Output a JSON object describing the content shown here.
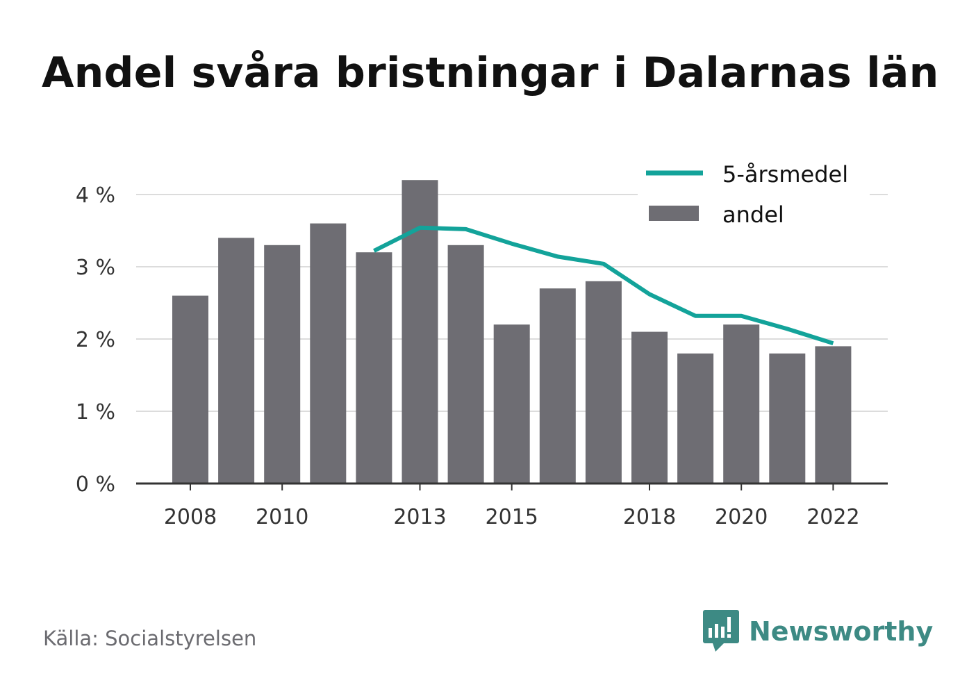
{
  "title": "Andel svåra bristningar i Dalarnas län",
  "source": "Källa: Socialstyrelsen",
  "logo_text": "Newsworthy",
  "colors": {
    "bar": "#6e6d73",
    "line": "#13a39a",
    "grid": "#dcdcdc",
    "axis": "#333333",
    "logo": "#3d8a84"
  },
  "chart_data": {
    "type": "bar",
    "categories": [
      "2008",
      "2009",
      "2010",
      "2011",
      "2012",
      "2013",
      "2014",
      "2015",
      "2016",
      "2017",
      "2018",
      "2019",
      "2020",
      "2021",
      "2022"
    ],
    "x_tick_labels": [
      "2008",
      "",
      "2010",
      "",
      "",
      "2013",
      "",
      "2015",
      "",
      "",
      "2018",
      "",
      "2020",
      "",
      "2022"
    ],
    "series": [
      {
        "name": "andel",
        "type": "bar",
        "values": [
          2.6,
          3.4,
          3.3,
          3.6,
          3.2,
          4.2,
          3.3,
          2.2,
          2.7,
          2.8,
          2.1,
          1.8,
          2.2,
          1.8,
          1.9
        ]
      },
      {
        "name": "5-årsmedel",
        "type": "line",
        "values": [
          null,
          null,
          null,
          null,
          3.22,
          3.54,
          3.52,
          3.32,
          3.14,
          3.04,
          2.62,
          2.32,
          2.32,
          2.14,
          1.94
        ]
      }
    ],
    "y_ticks": [
      "0 %",
      "1 %",
      "2 %",
      "3 %",
      "4 %"
    ],
    "ylim": [
      0,
      4.3
    ],
    "grid": true,
    "legend_position": "top-right"
  }
}
